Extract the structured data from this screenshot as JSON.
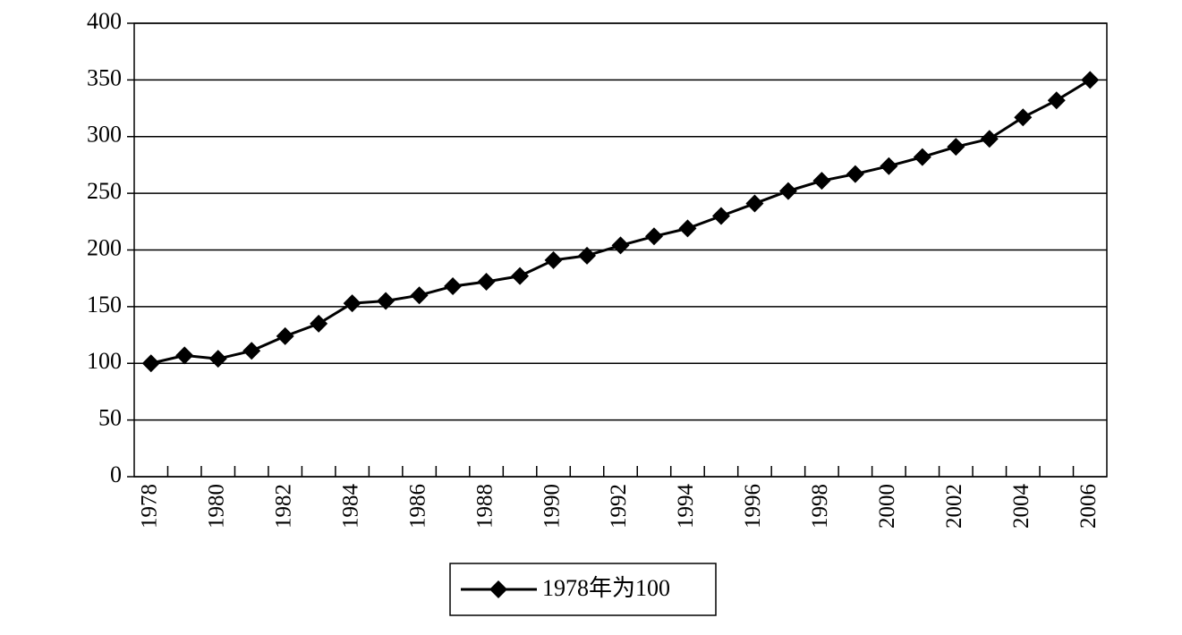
{
  "chart_data": {
    "type": "line",
    "categories": [
      "1978",
      null,
      "1980",
      null,
      "1982",
      null,
      "1984",
      null,
      "1986",
      null,
      "1988",
      null,
      "1990",
      null,
      "1992",
      null,
      "1994",
      null,
      "1996",
      null,
      "1998",
      null,
      "2000",
      null,
      "2002",
      null,
      "2004",
      null,
      "2006"
    ],
    "series": [
      {
        "name": "1978年为100",
        "color": "#000000",
        "values": [
          100,
          107,
          104,
          111,
          124,
          135,
          153,
          155,
          160,
          168,
          172,
          177,
          191,
          195,
          204,
          212,
          219,
          230,
          241,
          252,
          261,
          267,
          274,
          282,
          291,
          298,
          317,
          332,
          350
        ]
      }
    ],
    "ylim": [
      0,
      400
    ],
    "yticks": [
      0,
      50,
      100,
      150,
      200,
      250,
      300,
      350,
      400
    ],
    "grid": true,
    "legend": "bottom"
  }
}
